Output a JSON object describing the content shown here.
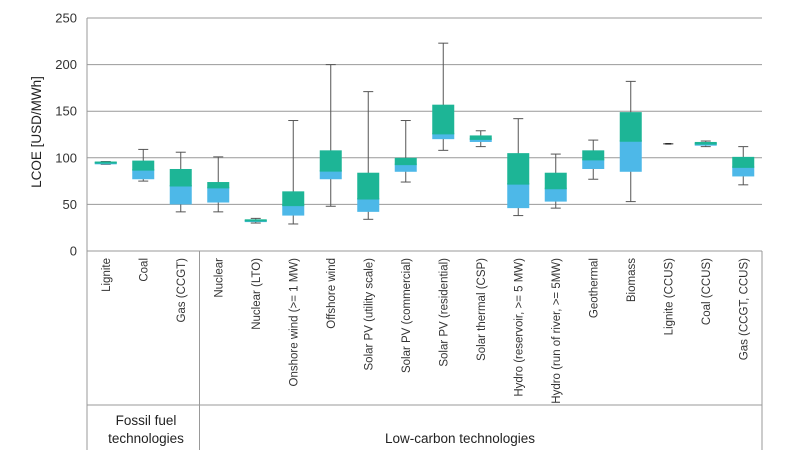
{
  "chart_data": {
    "type": "box",
    "ylabel": "LCOE [USD/MWh]",
    "ylim": [
      0,
      250
    ],
    "yticks": [
      0,
      50,
      100,
      150,
      200,
      250
    ],
    "grid": true,
    "categories": [
      "Lignite",
      "Coal",
      "Gas (CCGT)",
      "Nuclear",
      "Nuclear (LTO)",
      "Onshore wind (>= 1 MW)",
      "Offshore wind",
      "Solar PV (utility scale)",
      "Solar PV (commercial)",
      "Solar PV (residential)",
      "Solar thermal (CSP)",
      "Hydro (reservoir, >= 5 MW)",
      "Hydro (run of river, >= 5MW)",
      "Geothermal",
      "Biomass",
      "Lignite (CCUS)",
      "Coal (CCUS)",
      "Gas (CCGT, CCUS)"
    ],
    "groups": [
      {
        "label": "Fossil fuel technologies",
        "categories": [
          "Lignite",
          "Coal",
          "Gas (CCGT)"
        ]
      },
      {
        "label": "Low-carbon technologies",
        "categories": [
          "Nuclear",
          "Nuclear (LTO)",
          "Onshore wind (>= 1 MW)",
          "Offshore wind",
          "Solar PV (utility scale)",
          "Solar PV (commercial)",
          "Solar PV (residential)",
          "Solar thermal (CSP)",
          "Hydro (reservoir, >= 5 MW)",
          "Hydro (run of river, >= 5MW)",
          "Geothermal",
          "Biomass",
          "Lignite (CCUS)",
          "Coal (CCUS)",
          "Gas (CCGT, CCUS)"
        ]
      }
    ],
    "colors": {
      "lower_box": "#4db8e8",
      "upper_box": "#1db596",
      "whisker": "#555555",
      "grid": "#999999"
    },
    "boxes": [
      {
        "min": 93,
        "q1": 93,
        "median": 94.5,
        "q3": 96,
        "max": 96
      },
      {
        "min": 75,
        "q1": 77,
        "median": 87,
        "q3": 97,
        "max": 109
      },
      {
        "min": 42,
        "q1": 50,
        "median": 70,
        "q3": 88,
        "max": 106
      },
      {
        "min": 42,
        "q1": 52,
        "median": 68,
        "q3": 74,
        "max": 101
      },
      {
        "min": 30,
        "q1": 31,
        "median": 32.5,
        "q3": 34,
        "max": 35
      },
      {
        "min": 29,
        "q1": 38,
        "median": 49,
        "q3": 64,
        "max": 140
      },
      {
        "min": 48,
        "q1": 77,
        "median": 86,
        "q3": 108,
        "max": 200
      },
      {
        "min": 34,
        "q1": 42,
        "median": 56,
        "q3": 84,
        "max": 171
      },
      {
        "min": 74,
        "q1": 85,
        "median": 93,
        "q3": 100,
        "max": 140
      },
      {
        "min": 108,
        "q1": 120,
        "median": 126,
        "q3": 157,
        "max": 223
      },
      {
        "min": 112,
        "q1": 117,
        "median": 120,
        "q3": 124,
        "max": 129
      },
      {
        "min": 38,
        "q1": 46,
        "median": 72,
        "q3": 105,
        "max": 142
      },
      {
        "min": 46,
        "q1": 53,
        "median": 67,
        "q3": 84,
        "max": 104
      },
      {
        "min": 77,
        "q1": 88,
        "median": 98,
        "q3": 108,
        "max": 119
      },
      {
        "min": 53,
        "q1": 85,
        "median": 118,
        "q3": 149,
        "max": 182
      },
      {
        "min": 115,
        "q1": 115,
        "median": 115,
        "q3": 115,
        "max": 115
      },
      {
        "min": 112,
        "q1": 113,
        "median": 115,
        "q3": 117,
        "max": 118
      },
      {
        "min": 71,
        "q1": 80,
        "median": 90,
        "q3": 101,
        "max": 112
      }
    ]
  }
}
